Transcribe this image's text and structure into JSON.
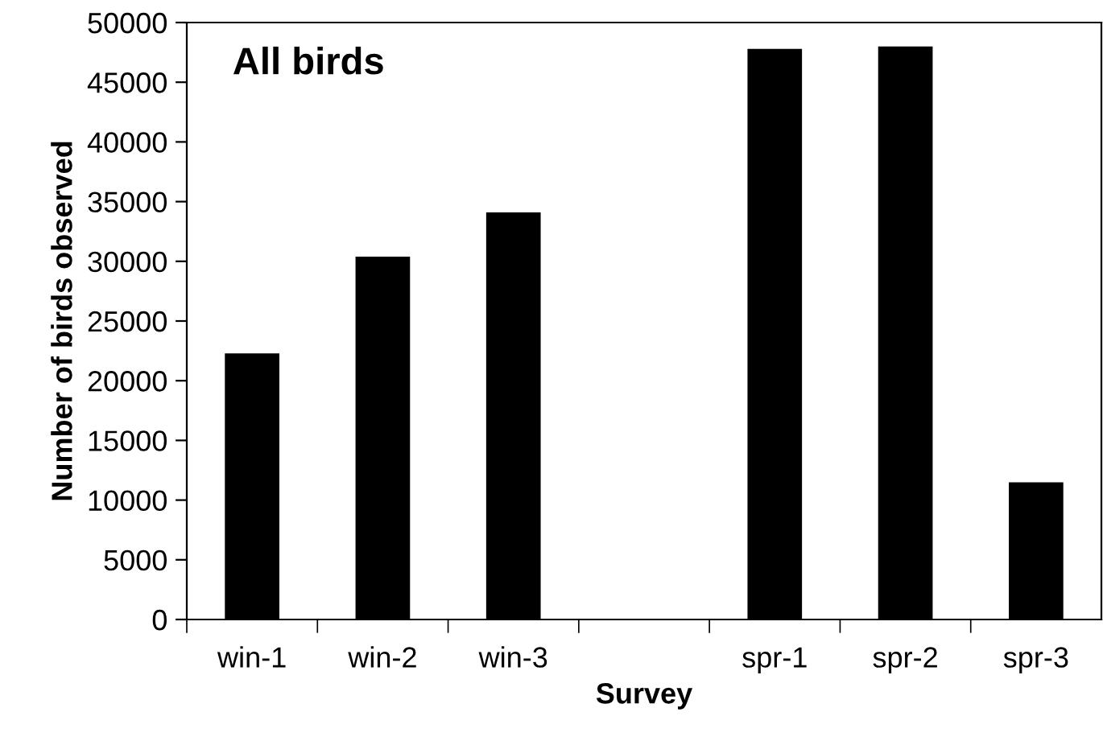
{
  "chart_data": {
    "type": "bar",
    "title": "All birds",
    "xlabel": "Survey",
    "ylabel": "Number of birds observed",
    "categories": [
      "win-1",
      "win-2",
      "win-3",
      null,
      "spr-1",
      "spr-2",
      "spr-3"
    ],
    "values": [
      22200,
      30300,
      34000,
      null,
      47700,
      47900,
      11400
    ],
    "color": "#000000",
    "ylim": [
      0,
      50000
    ],
    "yticks": [
      0,
      5000,
      10000,
      15000,
      20000,
      25000,
      30000,
      35000,
      40000,
      45000,
      50000
    ],
    "grid": false,
    "legend": false
  }
}
